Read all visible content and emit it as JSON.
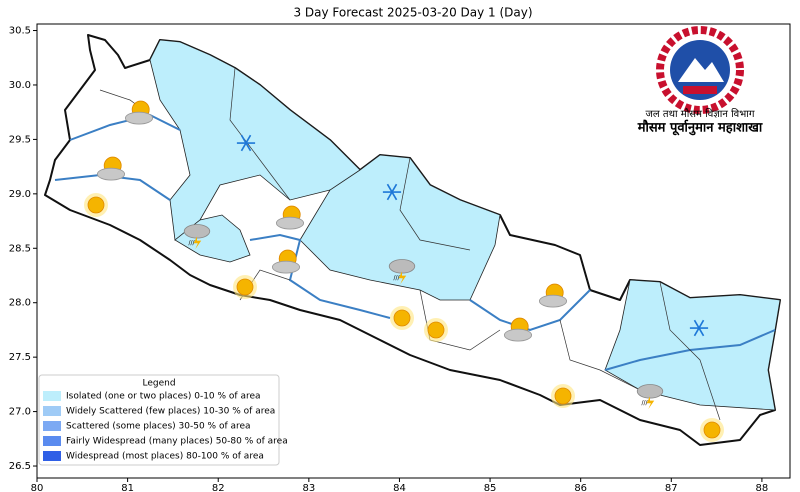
{
  "chart_data": {
    "type": "map",
    "title": "3 Day Forecast 2025-03-20 Day 1 (Day)",
    "xlim": [
      80.0,
      88.31
    ],
    "ylim": [
      26.39,
      30.56
    ],
    "xticks": [
      80,
      81,
      82,
      83,
      84,
      85,
      86,
      87,
      88
    ],
    "yticks": [
      {
        "value": 26.5,
        "label": "26.5"
      },
      {
        "value": 27,
        "label": "27.0"
      },
      {
        "value": 27.5,
        "label": "27.5"
      },
      {
        "value": 28,
        "label": "28.0"
      },
      {
        "value": 28.5,
        "label": "28.5"
      },
      {
        "value": 29,
        "label": "29.0"
      },
      {
        "value": 29.5,
        "label": "29.5"
      },
      {
        "value": 30,
        "label": "30.0"
      },
      {
        "value": 30.5,
        "label": "30.5"
      }
    ],
    "legend": {
      "title": "Legend",
      "items": [
        {
          "label": "Isolated (one or two places)  0-10 % of area",
          "color": "#bdeefc"
        },
        {
          "label": "Widely Scattered (few places) 10-30 % of area",
          "color": "#9fcbf6"
        },
        {
          "label": "Scattered (some places) 30-50  % of area",
          "color": "#7ca9f3"
        },
        {
          "label": "Fairly Widespread (many places) 50-80 % of area",
          "color": "#5a8bef"
        },
        {
          "label": "Widespread (most places) 80-100 % of area",
          "color": "#2f5fe6"
        }
      ]
    },
    "logo": {
      "line1": "जल तथा मौसम विज्ञान विभाग",
      "line2": "मौसम पूर्वानुमान महाशाखा"
    }
  }
}
